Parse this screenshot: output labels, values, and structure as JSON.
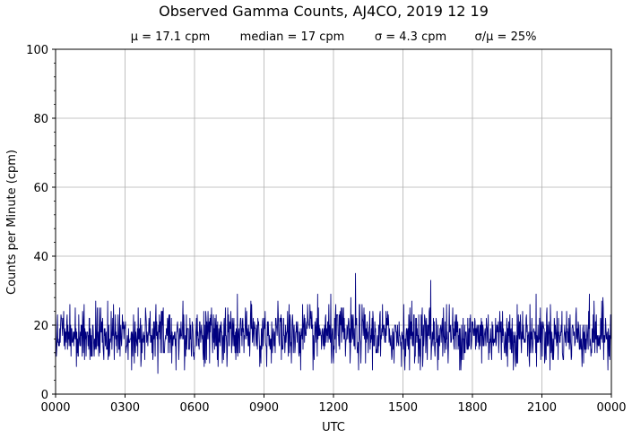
{
  "chart_data": {
    "type": "line",
    "title": "Observed Gamma Counts, AJ4CO, 2019 12 19",
    "subtitle_parts": [
      "μ = 17.1 cpm",
      "median = 17 cpm",
      "σ = 4.3 cpm",
      "σ/μ = 25%"
    ],
    "xlabel": "UTC",
    "ylabel": "Counts per Minute (cpm)",
    "xlim_minutes": [
      0,
      1440
    ],
    "ylim": [
      0,
      100
    ],
    "x_ticks": [
      {
        "minute": 0,
        "label": "0000"
      },
      {
        "minute": 180,
        "label": "0300"
      },
      {
        "minute": 360,
        "label": "0600"
      },
      {
        "minute": 540,
        "label": "0900"
      },
      {
        "minute": 720,
        "label": "1200"
      },
      {
        "minute": 900,
        "label": "1500"
      },
      {
        "minute": 1080,
        "label": "1800"
      },
      {
        "minute": 1260,
        "label": "2100"
      },
      {
        "minute": 1440,
        "label": "0000"
      }
    ],
    "y_ticks": [
      0,
      20,
      40,
      60,
      80,
      100
    ],
    "grid": true,
    "series": [
      {
        "color": "#00007f",
        "sampling": "one value per minute, UTC minute 0 to 1439",
        "summary": {
          "mean": 17.1,
          "median": 17,
          "std": 4.3,
          "min": 6,
          "max": 35
        },
        "notable_points": [
          {
            "minute": 777,
            "value": 35
          },
          {
            "minute": 972,
            "value": 33
          },
          {
            "minute": 265,
            "value": 6
          }
        ]
      }
    ]
  }
}
